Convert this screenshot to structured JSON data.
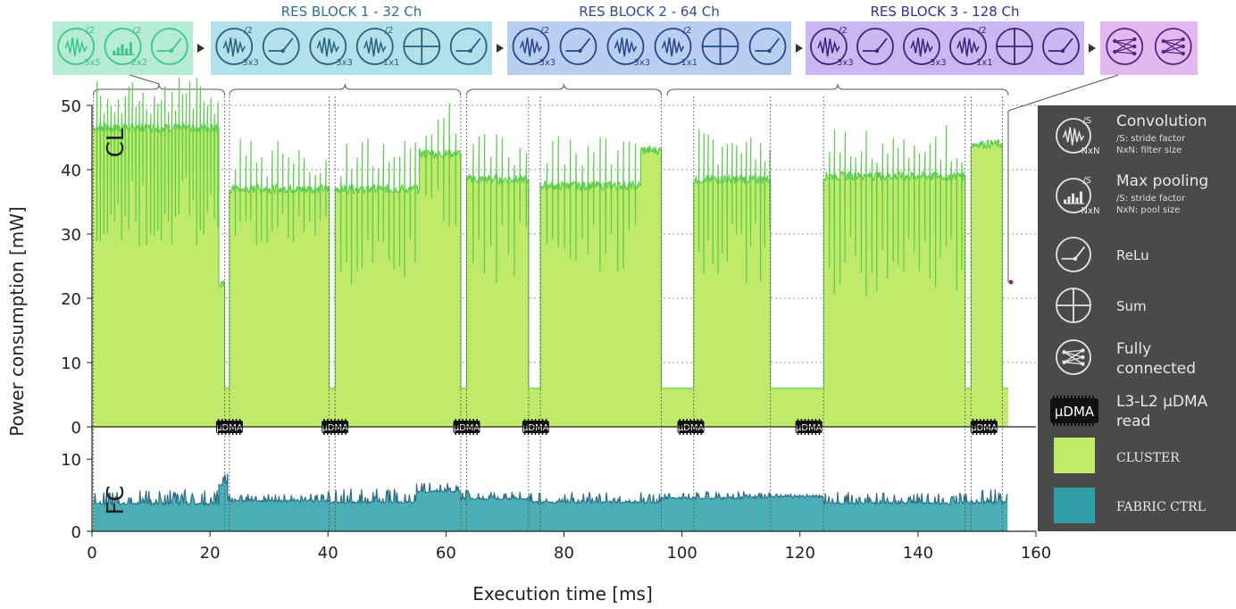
{
  "chart_data": {
    "type": "area",
    "xlabel": "Execution time [ms]",
    "ylabel": "Power consumption [mW]",
    "xlim": [
      0,
      160
    ],
    "x_ticks": [
      "0",
      "20",
      "40",
      "60",
      "80",
      "100",
      "120",
      "140",
      "160"
    ],
    "panels": [
      {
        "label": "CL",
        "series_name": "CLUSTER",
        "color": "#c0ea6a",
        "edge_color": "#5ecc4e",
        "ylim": [
          0,
          50
        ],
        "y_ticks": [
          "0",
          "10",
          "20",
          "30",
          "40",
          "50"
        ],
        "grid": true,
        "segments": [
          {
            "x0": 0.2,
            "x1": 21.5,
            "base": 46.5,
            "dip": 28,
            "spacing": 0.6
          },
          {
            "x0": 21.5,
            "x1": 22.5,
            "base": 22,
            "dip": 22,
            "spacing": 0
          },
          {
            "x0": 23.3,
            "x1": 40.2,
            "base": 37,
            "dip": 28,
            "spacing": 0.9
          },
          {
            "x0": 41.2,
            "x1": 55.5,
            "base": 37,
            "dip": 22,
            "spacing": 0.9
          },
          {
            "x0": 55.5,
            "x1": 62.5,
            "base": 42.5,
            "dip": 30,
            "spacing": 1.0
          },
          {
            "x0": 63.5,
            "x1": 74,
            "base": 38.5,
            "dip": 22,
            "spacing": 1.0
          },
          {
            "x0": 76,
            "x1": 93,
            "base": 37.5,
            "dip": 24,
            "spacing": 1.0
          },
          {
            "x0": 93,
            "x1": 96.5,
            "base": 43,
            "dip": 35,
            "spacing": 0
          },
          {
            "x0": 102,
            "x1": 115,
            "base": 38.5,
            "dip": 22,
            "spacing": 0.8
          },
          {
            "x0": 124,
            "x1": 148,
            "base": 39,
            "dip": 20,
            "spacing": 0.9
          },
          {
            "x0": 149,
            "x1": 154.3,
            "base": 44,
            "dip": 40,
            "spacing": 0
          }
        ],
        "gaps": [
          {
            "x0": 22.5,
            "x1": 23.3,
            "level": 6
          },
          {
            "x0": 40.2,
            "x1": 41.2,
            "level": 6
          },
          {
            "x0": 62.5,
            "x1": 63.5,
            "level": 6
          },
          {
            "x0": 74,
            "x1": 76,
            "level": 6
          },
          {
            "x0": 96.5,
            "x1": 102,
            "level": 6
          },
          {
            "x0": 115,
            "x1": 124,
            "level": 6
          },
          {
            "x0": 148,
            "x1": 149,
            "level": 6
          },
          {
            "x0": 154.3,
            "x1": 155.3,
            "level": 6
          }
        ]
      },
      {
        "label": "FC",
        "series_name": "FABRIC CTRL",
        "color": "#4aaeb4",
        "edge_color": "#2b6a86",
        "ylim": [
          0,
          13
        ],
        "y_ticks": [
          "0",
          "10"
        ],
        "segments": [
          {
            "x0": 0.2,
            "x1": 21.5,
            "base": 3.8,
            "spike": 5.8
          },
          {
            "x0": 21.5,
            "x1": 23,
            "base": 6.5,
            "spike": 8
          },
          {
            "x0": 23,
            "x1": 40,
            "base": 4.2,
            "spike": 5.2
          },
          {
            "x0": 40,
            "x1": 55,
            "base": 4.0,
            "spike": 6.0
          },
          {
            "x0": 55,
            "x1": 62.5,
            "base": 5.5,
            "spike": 6.8
          },
          {
            "x0": 62.5,
            "x1": 74,
            "base": 4.5,
            "spike": 5.8
          },
          {
            "x0": 74,
            "x1": 96.5,
            "base": 4.0,
            "spike": 5.5
          },
          {
            "x0": 96.5,
            "x1": 115,
            "base": 4.6,
            "spike": 5.5
          },
          {
            "x0": 115,
            "x1": 124,
            "base": 4.8,
            "spike": 5.2
          },
          {
            "x0": 124,
            "x1": 148,
            "base": 3.9,
            "spike": 5.5
          },
          {
            "x0": 148,
            "x1": 155.3,
            "base": 4.0,
            "spike": 6.0
          }
        ]
      }
    ],
    "dma_reads": [
      {
        "x": 23.3,
        "label": "µDMA"
      },
      {
        "x": 41.2,
        "label": "µDMA"
      },
      {
        "x": 63.5,
        "label": "µDMA"
      },
      {
        "x": 75.2,
        "label": "µDMA"
      },
      {
        "x": 101.5,
        "label": "µDMA"
      },
      {
        "x": 121.5,
        "label": "µDMA"
      },
      {
        "x": 151.2,
        "label": "µDMA"
      }
    ],
    "phase_lines": [
      0.2,
      22.5,
      23.3,
      40.2,
      41.2,
      62.5,
      63.5,
      74,
      76,
      96.5,
      102,
      115,
      124,
      148,
      149,
      154.3
    ]
  },
  "network": {
    "groups": [
      {
        "id": "stem",
        "title": "",
        "fill": "#b6ecd4",
        "text_color": "#3aa07a",
        "icon_color": "#3cc48c",
        "ops": [
          {
            "kind": "conv",
            "stride": "/2",
            "size": "5x5"
          },
          {
            "kind": "pool",
            "stride": "/2",
            "size": "2x2"
          },
          {
            "kind": "relu"
          }
        ]
      },
      {
        "id": "res1",
        "title": "RES BLOCK 1 - 32 Ch",
        "fill": "#b3e0ea",
        "text_color": "#2f6f8d",
        "icon_color": "#25627e",
        "ops": [
          {
            "kind": "conv",
            "stride": "/2",
            "size": "3x3"
          },
          {
            "kind": "relu"
          },
          {
            "kind": "conv",
            "stride": "",
            "size": "3x3"
          },
          {
            "kind": "conv",
            "stride": "/2",
            "size": "1x1"
          },
          {
            "kind": "sum"
          },
          {
            "kind": "relu"
          }
        ]
      },
      {
        "id": "res2",
        "title": "RES BLOCK 2 - 64 Ch",
        "fill": "#b9cef0",
        "text_color": "#2f4d8d",
        "icon_color": "#244788",
        "ops": [
          {
            "kind": "conv",
            "stride": "/2",
            "size": "3x3"
          },
          {
            "kind": "relu"
          },
          {
            "kind": "conv",
            "stride": "",
            "size": "3x3"
          },
          {
            "kind": "conv",
            "stride": "/2",
            "size": "1x1"
          },
          {
            "kind": "sum"
          },
          {
            "kind": "relu"
          }
        ]
      },
      {
        "id": "res3",
        "title": "RES BLOCK 3 - 128 Ch",
        "fill": "#cbb8f0",
        "text_color": "#3f2a8a",
        "icon_color": "#36237f",
        "ops": [
          {
            "kind": "conv",
            "stride": "/2",
            "size": "3x3"
          },
          {
            "kind": "relu"
          },
          {
            "kind": "conv",
            "stride": "",
            "size": "3x3"
          },
          {
            "kind": "conv",
            "stride": "/2",
            "size": "1x1"
          },
          {
            "kind": "sum"
          },
          {
            "kind": "relu"
          }
        ]
      },
      {
        "id": "fc",
        "title": "",
        "fill": "#e2b8f0",
        "text_color": "#6a2a8a",
        "icon_color": "#5b2380",
        "ops": [
          {
            "kind": "fc"
          },
          {
            "kind": "fc"
          }
        ]
      }
    ],
    "brace_spans": [
      [
        0.2,
        22.5
      ],
      [
        23.3,
        62.5
      ],
      [
        63.5,
        96.5
      ],
      [
        97.5,
        155.3
      ]
    ]
  },
  "legend": {
    "items": [
      {
        "icon": "conv-icon",
        "title": "Convolution",
        "sub1": "/S: stride factor",
        "sub2": "NxN: filter size",
        "stride": "/S",
        "size": "NxN"
      },
      {
        "icon": "pool-icon",
        "title": "Max pooling",
        "sub1": "/S: stride factor",
        "sub2": "NxN: pool size",
        "stride": "/S",
        "size": "NxN"
      },
      {
        "icon": "relu-icon",
        "title": "ReLu"
      },
      {
        "icon": "sum-icon",
        "title": "Sum"
      },
      {
        "icon": "fc-icon",
        "title": "Fully",
        "title2": "connected"
      },
      {
        "icon": "dma-icon",
        "title": "L3-L2 µDMA",
        "title2": "read",
        "chip": "µDMA"
      },
      {
        "icon": "cluster-swatch",
        "title": "CLUSTER",
        "color": "#c0ea6a"
      },
      {
        "icon": "fabric-swatch",
        "title": "FABRIC CTRL",
        "color": "#2f9ea6"
      }
    ],
    "bg": "#4a4a4a"
  }
}
